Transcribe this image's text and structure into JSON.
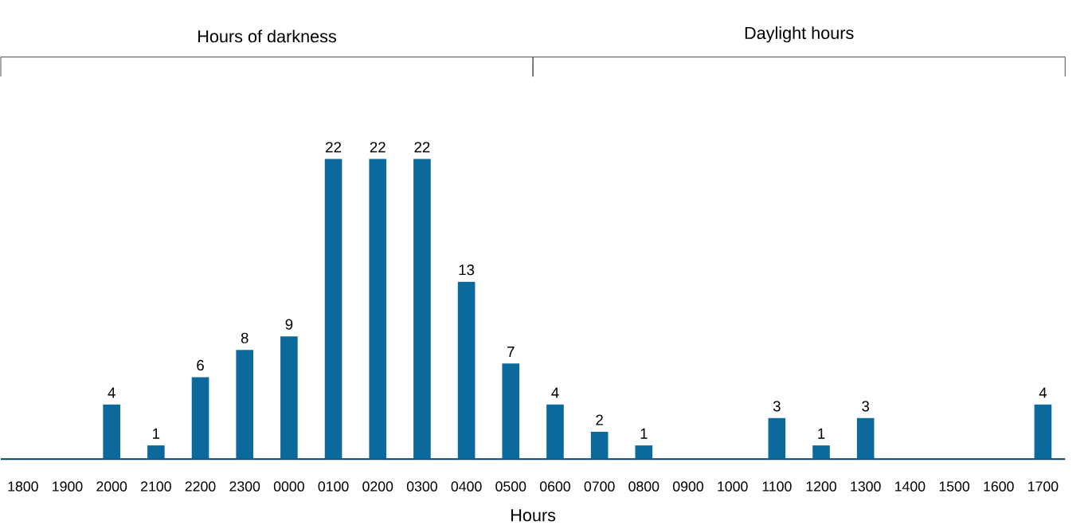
{
  "chart_data": {
    "type": "bar",
    "xlabel": "Hours",
    "categories": [
      "1800",
      "1900",
      "2000",
      "2100",
      "2200",
      "2300",
      "0000",
      "0100",
      "0200",
      "0300",
      "0400",
      "0500",
      "0600",
      "0700",
      "0800",
      "0900",
      "1000",
      "1100",
      "1200",
      "1300",
      "1400",
      "1500",
      "1600",
      "1700"
    ],
    "values": [
      0,
      0,
      4,
      1,
      6,
      8,
      9,
      22,
      22,
      22,
      13,
      7,
      4,
      2,
      1,
      0,
      0,
      3,
      1,
      3,
      0,
      0,
      0,
      4
    ],
    "value_labels": [
      null,
      null,
      "4",
      "1",
      "6",
      "8",
      "9",
      "22",
      "22",
      "22",
      "13",
      "7",
      "4",
      "2",
      "1",
      null,
      null,
      "3",
      "1",
      "3",
      null,
      null,
      null,
      "4"
    ],
    "color": "#0b6a9b",
    "annotations": [
      "Hours of darkness",
      "Daylight hours"
    ],
    "grid": false
  }
}
